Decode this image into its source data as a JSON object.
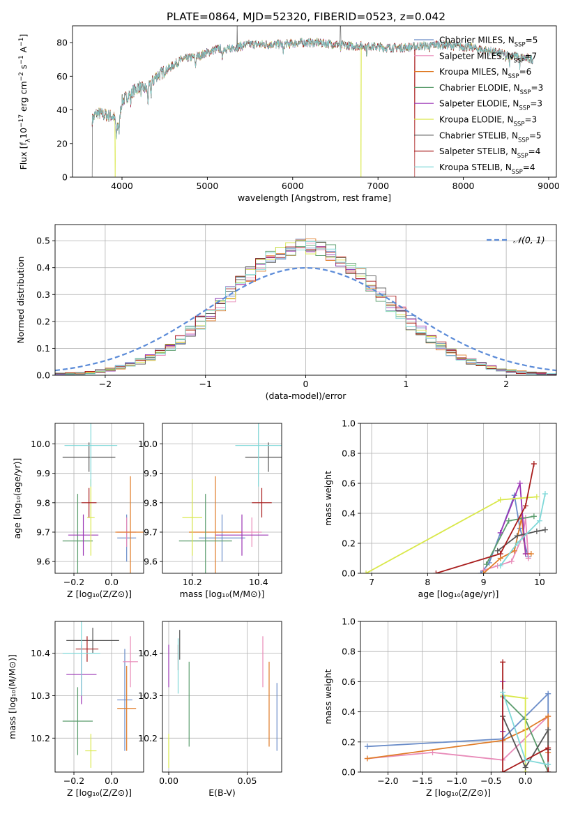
{
  "title": "PLATE=0864, MJD=52320, FIBERID=0523, z=0.042",
  "colors": {
    "Chabrier MILES": "#6a8cc8",
    "Salpeter MILES": "#e88ab8",
    "Kroupa MILES": "#e07c28",
    "Chabrier ELODIE": "#5a9c6c",
    "Salpeter ELODIE": "#9b35b5",
    "Kroupa ELODIE": "#d9e84a",
    "Chabrier STELIB": "#555555",
    "Salpeter STELIB": "#a81c1c",
    "Kroupa STELIB": "#7fd8d8",
    "normal": "#5b8bd8",
    "grid": "#b0b0b0"
  },
  "chart_data": [
    {
      "id": "spectrum",
      "type": "line",
      "xlabel": "wavelength [Angstrom, rest frame]",
      "ylabel_parts": [
        "Flux [f",
        "λ",
        "10",
        "−17",
        " erg cm",
        "−2",
        " s",
        "−1",
        " A",
        "−1",
        "]"
      ],
      "xlim": [
        3420,
        9090
      ],
      "ylim": [
        0,
        90
      ],
      "xticks": [
        4000,
        5000,
        6000,
        7000,
        8000,
        9000
      ],
      "yticks": [
        0,
        20,
        40,
        60,
        80
      ],
      "legend_position": "top-right",
      "legend": [
        {
          "name": "Chabrier MILES",
          "base": "Chabrier MILES, N",
          "sub": "SSP",
          "suffix": "=5"
        },
        {
          "name": "Salpeter MILES",
          "base": "Salpeter MILES, N",
          "sub": "SSP",
          "suffix": "=7"
        },
        {
          "name": "Kroupa MILES",
          "base": "Kroupa MILES, N",
          "sub": "SSP",
          "suffix": "=6"
        },
        {
          "name": "Chabrier ELODIE",
          "base": "Chabrier ELODIE, N",
          "sub": "SSP",
          "suffix": "=3"
        },
        {
          "name": "Salpeter ELODIE",
          "base": "Salpeter ELODIE, N",
          "sub": "SSP",
          "suffix": "=3"
        },
        {
          "name": "Kroupa ELODIE",
          "base": "Kroupa ELODIE, N",
          "sub": "SSP",
          "suffix": "=3"
        },
        {
          "name": "Chabrier STELIB",
          "base": "Chabrier STELIB, N",
          "sub": "SSP",
          "suffix": "=5"
        },
        {
          "name": "Salpeter STELIB",
          "base": "Salpeter STELIB, N",
          "sub": "SSP",
          "suffix": "=4"
        },
        {
          "name": "Kroupa STELIB",
          "base": "Kroupa STELIB, N",
          "sub": "SSP",
          "suffix": "=4"
        }
      ],
      "continuum": [
        [
          3650,
          34
        ],
        [
          3700,
          38
        ],
        [
          3800,
          37
        ],
        [
          3900,
          36
        ],
        [
          3950,
          30
        ],
        [
          4000,
          45
        ],
        [
          4100,
          50
        ],
        [
          4200,
          54
        ],
        [
          4300,
          52
        ],
        [
          4400,
          60
        ],
        [
          4500,
          63
        ],
        [
          4700,
          70
        ],
        [
          4900,
          72
        ],
        [
          5100,
          76
        ],
        [
          5300,
          77
        ],
        [
          5500,
          79
        ],
        [
          5700,
          79
        ],
        [
          5900,
          79
        ],
        [
          6100,
          80
        ],
        [
          6300,
          80
        ],
        [
          6500,
          79
        ],
        [
          6700,
          78
        ],
        [
          6900,
          78
        ],
        [
          7100,
          77
        ],
        [
          7300,
          77
        ],
        [
          7500,
          78
        ],
        [
          7700,
          79
        ],
        [
          7900,
          78
        ],
        [
          8100,
          77
        ],
        [
          8300,
          75
        ],
        [
          8500,
          73
        ],
        [
          8700,
          71
        ],
        [
          8820,
          70
        ]
      ],
      "absorption_lines": [
        [
          3934,
          10
        ],
        [
          3968,
          9
        ],
        [
          4102,
          6
        ],
        [
          4227,
          4
        ],
        [
          4304,
          8
        ],
        [
          4340,
          6
        ],
        [
          4861,
          6
        ],
        [
          5175,
          8
        ],
        [
          5270,
          4
        ],
        [
          5890,
          6
        ],
        [
          6563,
          3
        ],
        [
          6867,
          4
        ],
        [
          7605,
          5
        ],
        [
          8498,
          4
        ],
        [
          8542,
          5
        ],
        [
          8662,
          5
        ]
      ],
      "spikes": [
        [
          3650,
          0,
          "Chabrier STELIB"
        ],
        [
          3920,
          0,
          "Kroupa ELODIE"
        ],
        [
          5350,
          92,
          "Chabrier STELIB"
        ],
        [
          6560,
          92,
          "Chabrier STELIB"
        ],
        [
          6800,
          0,
          "Kroupa ELODIE"
        ],
        [
          7430,
          0,
          "Salpeter STELIB"
        ]
      ]
    },
    {
      "id": "residuals",
      "type": "histogram",
      "xlabel": "(data-model)/error",
      "ylabel": "Normed distribution",
      "xlim": [
        -2.5,
        2.5
      ],
      "ylim": [
        0,
        0.56
      ],
      "xticks": [
        -2,
        -1,
        0,
        1,
        2
      ],
      "yticks": [
        0.0,
        0.1,
        0.2,
        0.3,
        0.4,
        0.5
      ],
      "bin_width": 0.1,
      "legend_position": "top-right",
      "normal_label": "𝒩(0, 1)"
    },
    {
      "id": "age_vs_Z",
      "type": "errorbar",
      "xlabel": "Z [log₁₀(Z/Z⊙)]",
      "ylabel": "age  [log₁₀(age/yr)]",
      "xlim": [
        -0.3,
        0.17
      ],
      "ylim": [
        9.56,
        10.07
      ],
      "xticks": [
        -0.2,
        0.0
      ],
      "yticks": [
        9.6,
        9.7,
        9.8,
        9.9,
        10.0
      ],
      "points": [
        {
          "series": "Chabrier MILES",
          "x": 0.08,
          "y": 9.68,
          "xerr": 0.05,
          "yerr": 0.08
        },
        {
          "series": "Salpeter MILES",
          "x": 0.08,
          "y": 9.7,
          "xerr": 0.05,
          "yerr": 0.05
        },
        {
          "series": "Kroupa MILES",
          "x": 0.1,
          "y": 9.7,
          "xerr": 0.08,
          "yerr": 0.19
        },
        {
          "series": "Chabrier ELODIE",
          "x": -0.18,
          "y": 9.67,
          "xerr": 0.08,
          "yerr": 0.16
        },
        {
          "series": "Salpeter ELODIE",
          "x": -0.15,
          "y": 9.69,
          "xerr": 0.08,
          "yerr": 0.07
        },
        {
          "series": "Kroupa ELODIE",
          "x": -0.11,
          "y": 9.75,
          "xerr": 0.02,
          "yerr": 0.13
        },
        {
          "series": "Chabrier STELIB",
          "x": -0.12,
          "y": 9.955,
          "xerr": 0.14,
          "yerr": 0.05
        },
        {
          "series": "Salpeter STELIB",
          "x": -0.12,
          "y": 9.8,
          "xerr": 0.04,
          "yerr": 0.05
        },
        {
          "series": "Kroupa STELIB",
          "x": -0.11,
          "y": 9.995,
          "xerr": 0.14,
          "yerr": 0.14
        }
      ]
    },
    {
      "id": "age_vs_mass",
      "type": "errorbar",
      "xlabel": "mass [log₁₀(M/M⊙)]",
      "ylabel": "",
      "xlim": [
        10.11,
        10.47
      ],
      "ylim": [
        9.56,
        10.07
      ],
      "xticks": [
        10.2,
        10.4
      ],
      "yticks": [
        9.6,
        9.7,
        9.8,
        9.9,
        10.0
      ],
      "points": [
        {
          "series": "Chabrier MILES",
          "x": 10.29,
          "y": 9.68,
          "xerr": 0.07,
          "yerr": 0.08
        },
        {
          "series": "Salpeter MILES",
          "x": 10.38,
          "y": 9.7,
          "xerr": 0.03,
          "yerr": 0.05
        },
        {
          "series": "Kroupa MILES",
          "x": 10.27,
          "y": 9.7,
          "xerr": 0.08,
          "yerr": 0.19
        },
        {
          "series": "Chabrier ELODIE",
          "x": 10.24,
          "y": 9.67,
          "xerr": 0.08,
          "yerr": 0.16
        },
        {
          "series": "Salpeter ELODIE",
          "x": 10.35,
          "y": 9.69,
          "xerr": 0.08,
          "yerr": 0.07
        },
        {
          "series": "Kroupa ELODIE",
          "x": 10.2,
          "y": 9.75,
          "xerr": 0.03,
          "yerr": 0.13
        },
        {
          "series": "Chabrier STELIB",
          "x": 10.43,
          "y": 9.955,
          "xerr": 0.07,
          "yerr": 0.05
        },
        {
          "series": "Salpeter STELIB",
          "x": 10.41,
          "y": 9.8,
          "xerr": 0.03,
          "yerr": 0.05
        },
        {
          "series": "Kroupa STELIB",
          "x": 10.4,
          "y": 9.995,
          "xerr": 0.07,
          "yerr": 0.14
        }
      ]
    },
    {
      "id": "massweight_vs_age",
      "type": "line",
      "xlabel": "age  [log₁₀(age/yr)]",
      "ylabel": "mass weight",
      "xlim": [
        6.8,
        10.3
      ],
      "ylim": [
        0,
        1
      ],
      "xticks": [
        7,
        8,
        9,
        10
      ],
      "yticks": [
        0.0,
        0.2,
        0.4,
        0.6,
        0.8,
        1.0
      ],
      "series": [
        {
          "name": "Chabrier MILES",
          "x": [
            8.95,
            9.1,
            9.55,
            9.65,
            9.8
          ],
          "y": [
            0.0,
            0.07,
            0.52,
            0.3,
            0.11
          ]
        },
        {
          "name": "Salpeter MILES",
          "x": [
            9.0,
            9.25,
            9.5,
            9.7,
            9.75,
            9.8
          ],
          "y": [
            0.02,
            0.05,
            0.08,
            0.25,
            0.37,
            0.1
          ]
        },
        {
          "name": "Kroupa MILES",
          "x": [
            9.0,
            9.3,
            9.55,
            9.68,
            9.75,
            9.85
          ],
          "y": [
            0.0,
            0.1,
            0.15,
            0.37,
            0.13,
            0.13
          ]
        },
        {
          "name": "Chabrier ELODIE",
          "x": [
            9.05,
            9.45,
            9.9
          ],
          "y": [
            0.06,
            0.35,
            0.38
          ]
        },
        {
          "name": "Salpeter ELODIE",
          "x": [
            9.3,
            9.65,
            9.75
          ],
          "y": [
            0.27,
            0.6,
            0.13
          ]
        },
        {
          "name": "Kroupa ELODIE",
          "x": [
            6.9,
            9.3,
            9.95
          ],
          "y": [
            0.0,
            0.49,
            0.51
          ]
        },
        {
          "name": "Chabrier STELIB",
          "x": [
            9.25,
            9.6,
            9.95,
            10.1
          ],
          "y": [
            0.15,
            0.25,
            0.28,
            0.29
          ]
        },
        {
          "name": "Salpeter STELIB",
          "x": [
            8.15,
            9.3,
            9.75,
            9.9
          ],
          "y": [
            0.0,
            0.13,
            0.45,
            0.73
          ]
        },
        {
          "name": "Kroupa STELIB",
          "x": [
            9.3,
            9.6,
            10.0,
            10.1
          ],
          "y": [
            0.05,
            0.2,
            0.35,
            0.53
          ]
        }
      ]
    },
    {
      "id": "mass_vs_Z",
      "type": "errorbar",
      "xlabel": "Z [log₁₀(Z/Z⊙)]",
      "ylabel": "mass [log₁₀(M/M⊙)]",
      "xlim": [
        -0.3,
        0.17
      ],
      "ylim": [
        10.12,
        10.475
      ],
      "xticks": [
        -0.2,
        0.0
      ],
      "yticks": [
        10.2,
        10.3,
        10.4
      ],
      "points": [
        {
          "series": "Chabrier MILES",
          "x": 0.07,
          "y": 10.29,
          "xerr": 0.04,
          "yerr": 0.12
        },
        {
          "series": "Salpeter MILES",
          "x": 0.1,
          "y": 10.38,
          "xerr": 0.04,
          "yerr": 0.06
        },
        {
          "series": "Kroupa MILES",
          "x": 0.08,
          "y": 10.27,
          "xerr": 0.05,
          "yerr": 0.1
        },
        {
          "series": "Chabrier ELODIE",
          "x": -0.18,
          "y": 10.24,
          "xerr": 0.08,
          "yerr": 0.08
        },
        {
          "series": "Salpeter ELODIE",
          "x": -0.16,
          "y": 10.35,
          "xerr": 0.08,
          "yerr": 0.07
        },
        {
          "series": "Kroupa ELODIE",
          "x": -0.11,
          "y": 10.17,
          "xerr": 0.03,
          "yerr": 0.04
        },
        {
          "series": "Chabrier STELIB",
          "x": -0.1,
          "y": 10.43,
          "xerr": 0.14,
          "yerr": 0.03
        },
        {
          "series": "Salpeter STELIB",
          "x": -0.13,
          "y": 10.41,
          "xerr": 0.06,
          "yerr": 0.03
        },
        {
          "series": "Kroupa STELIB",
          "x": -0.16,
          "y": 10.4,
          "xerr": 0.1,
          "yerr": 0.1
        }
      ]
    },
    {
      "id": "mass_vs_ebv",
      "type": "errorbar",
      "xlabel": "E(B-V)",
      "ylabel": "",
      "xlim": [
        -0.004,
        0.072
      ],
      "ylim": [
        10.12,
        10.475
      ],
      "xticks": [
        0.0,
        0.05
      ],
      "yticks": [
        10.2,
        10.3,
        10.4
      ],
      "points": [
        {
          "series": "Chabrier MILES",
          "x": 0.069,
          "y": 10.25,
          "xerr": 0.0,
          "yerr": 0.08
        },
        {
          "series": "Salpeter MILES",
          "x": 0.06,
          "y": 10.38,
          "xerr": 0.0,
          "yerr": 0.06
        },
        {
          "series": "Kroupa MILES",
          "x": 0.064,
          "y": 10.28,
          "xerr": 0.0,
          "yerr": 0.1
        },
        {
          "series": "Chabrier ELODIE",
          "x": 0.013,
          "y": 10.28,
          "xerr": 0.0,
          "yerr": 0.1
        },
        {
          "series": "Salpeter ELODIE",
          "x": 0.0,
          "y": 10.37,
          "xerr": 0.0,
          "yerr": 0.05
        },
        {
          "series": "Kroupa ELODIE",
          "x": 0.0,
          "y": 10.17,
          "xerr": 0.0,
          "yerr": 0.04
        },
        {
          "series": "Chabrier STELIB",
          "x": 0.007,
          "y": 10.42,
          "xerr": 0.0,
          "yerr": 0.035
        },
        {
          "series": "Salpeter STELIB",
          "x": 0.006,
          "y": 10.39,
          "xerr": 0.0,
          "yerr": 0.03
        },
        {
          "series": "Kroupa STELIB",
          "x": 0.006,
          "y": 10.37,
          "xerr": 0.0,
          "yerr": 0.065
        }
      ]
    },
    {
      "id": "massweight_vs_Z",
      "type": "line",
      "xlabel": "Z [log₁₀(Z/Z⊙)]",
      "ylabel": "mass weight",
      "xlim": [
        -2.4,
        0.45
      ],
      "ylim": [
        0,
        1
      ],
      "xticks": [
        -2.0,
        -1.5,
        -1.0,
        -0.5,
        0.0
      ],
      "yticks": [
        0.0,
        0.2,
        0.4,
        0.6,
        0.8,
        1.0
      ],
      "series": [
        {
          "name": "Chabrier MILES",
          "x": [
            -2.3,
            -0.33,
            0.33,
            0.33
          ],
          "y": [
            0.17,
            0.22,
            0.52,
            0.0
          ]
        },
        {
          "name": "Salpeter MILES",
          "x": [
            -2.3,
            -1.35,
            -0.33,
            0.33
          ],
          "y": [
            0.09,
            0.13,
            0.08,
            0.37
          ]
        },
        {
          "name": "Kroupa MILES",
          "x": [
            -2.3,
            -0.33,
            0.0,
            0.33,
            0.33
          ],
          "y": [
            0.09,
            0.21,
            0.28,
            0.37,
            0.13
          ]
        },
        {
          "name": "Chabrier ELODIE",
          "x": [
            -0.33,
            0.0,
            0.33
          ],
          "y": [
            0.5,
            0.35,
            0.0
          ]
        },
        {
          "name": "Salpeter ELODIE",
          "x": [
            -0.33,
            -0.33
          ],
          "y": [
            0.6,
            0.27
          ]
        },
        {
          "name": "Kroupa ELODIE",
          "x": [
            -0.33,
            0.0,
            0.0
          ],
          "y": [
            0.51,
            0.49,
            0.0
          ]
        },
        {
          "name": "Chabrier STELIB",
          "x": [
            -0.33,
            0.0,
            0.33,
            0.33
          ],
          "y": [
            0.37,
            0.03,
            0.28,
            0.15
          ]
        },
        {
          "name": "Salpeter STELIB",
          "x": [
            -0.33,
            -0.33,
            0.33,
            0.33
          ],
          "y": [
            0.73,
            0.0,
            0.16,
            0.0
          ]
        },
        {
          "name": "Kroupa STELIB",
          "x": [
            -0.33,
            0.0,
            0.33
          ],
          "y": [
            0.53,
            0.08,
            0.05
          ]
        }
      ]
    }
  ]
}
